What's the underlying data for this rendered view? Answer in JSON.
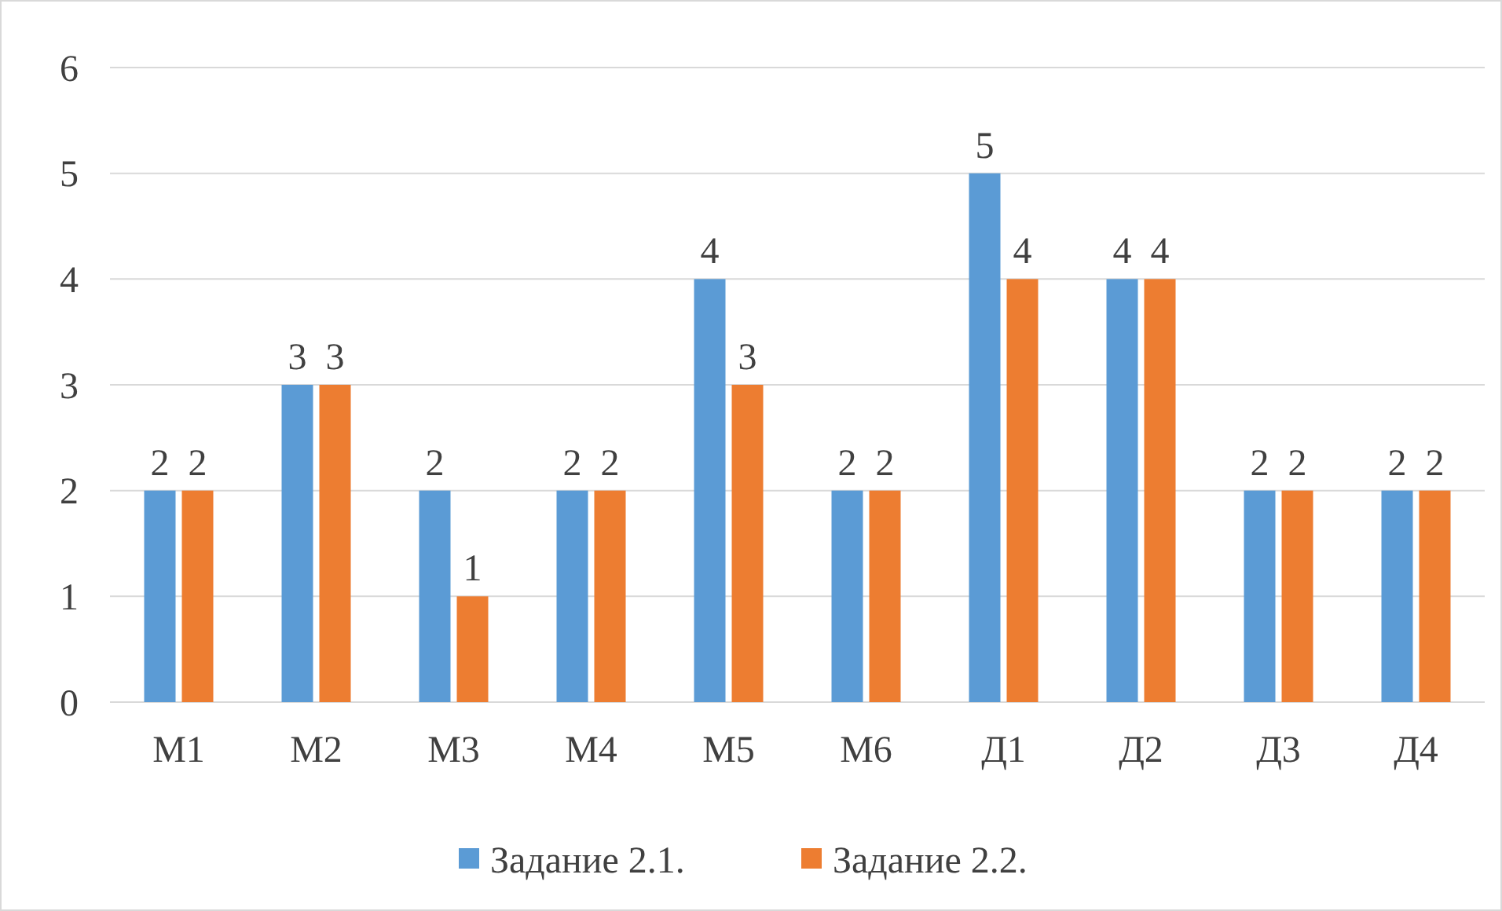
{
  "chart_data": {
    "type": "bar",
    "categories": [
      "М1",
      "М2",
      "М3",
      "М4",
      "М5",
      "М6",
      "Д1",
      "Д2",
      "Д3",
      "Д4"
    ],
    "series": [
      {
        "name": "Задание 2.1.",
        "color": "#5b9bd5",
        "values": [
          2,
          3,
          2,
          2,
          4,
          2,
          5,
          4,
          2,
          2
        ]
      },
      {
        "name": "Задание 2.2.",
        "color": "#ed7d31",
        "values": [
          2,
          3,
          1,
          2,
          3,
          2,
          4,
          4,
          2,
          2
        ]
      }
    ],
    "ylim": [
      0,
      6
    ],
    "yticks": [
      0,
      1,
      2,
      3,
      4,
      5,
      6
    ],
    "grid": "y",
    "data_labels": true,
    "legend": "bottom"
  }
}
